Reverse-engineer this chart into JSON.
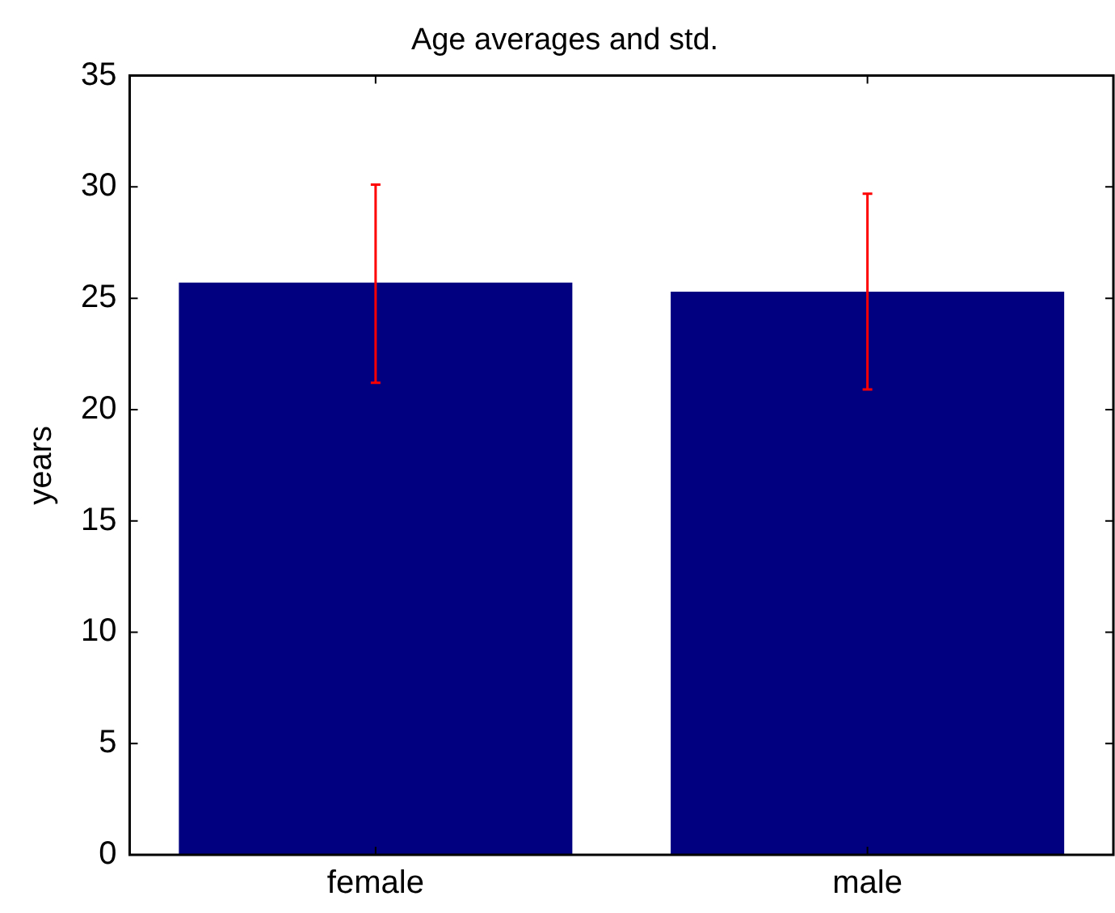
{
  "chart_data": {
    "type": "bar",
    "title": "Age averages and std.",
    "ylabel": "years",
    "categories": [
      "female",
      "male"
    ],
    "series": [
      {
        "color": "#000080",
        "values": [
          25.7,
          25.3
        ],
        "errors": [
          [
            21.2,
            30.1
          ],
          [
            20.9,
            29.7
          ]
        ]
      }
    ],
    "ylim": [
      0,
      35
    ],
    "yticks": [
      0,
      5,
      10,
      15,
      20,
      25,
      30,
      35
    ],
    "grid": false,
    "legend": false
  }
}
